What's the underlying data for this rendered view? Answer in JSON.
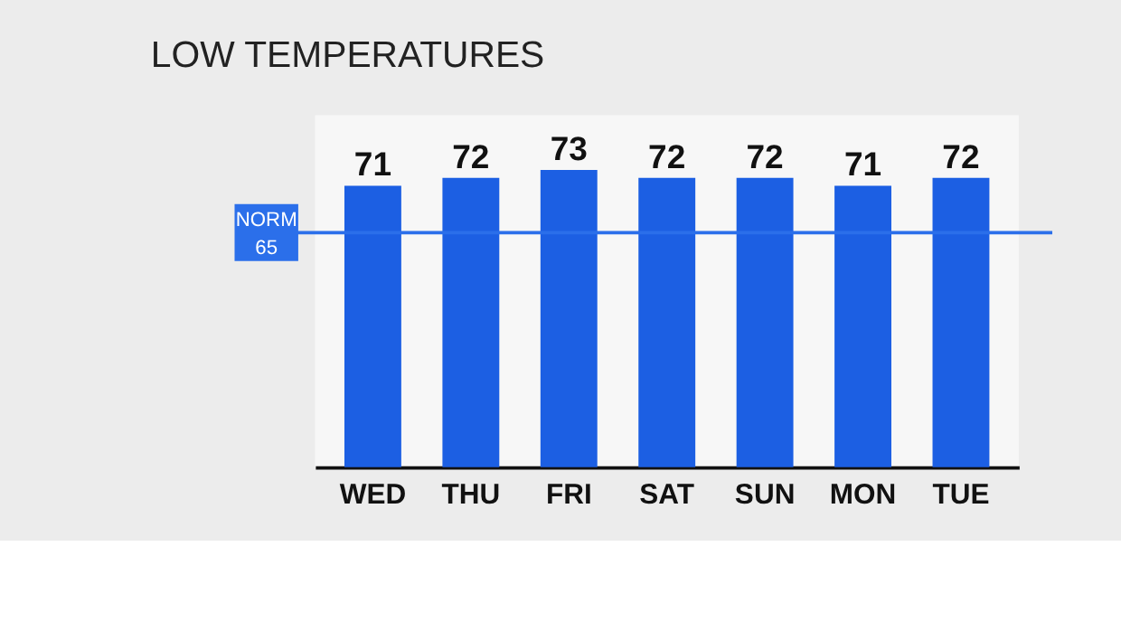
{
  "chart_data": {
    "type": "bar",
    "title": "LOW TEMPERATURES",
    "categories": [
      "WED",
      "THU",
      "FRI",
      "SAT",
      "SUN",
      "MON",
      "TUE"
    ],
    "values": [
      71,
      72,
      73,
      72,
      72,
      71,
      72
    ],
    "color": "#1c5fe3",
    "ylim": [
      35,
      80
    ],
    "tick_labels": "x",
    "grid": false,
    "data_labels": true,
    "ref_lines": [
      {
        "axis": "y",
        "value": 65,
        "label": "NORM 65",
        "color": "#2b6fea"
      }
    ]
  }
}
